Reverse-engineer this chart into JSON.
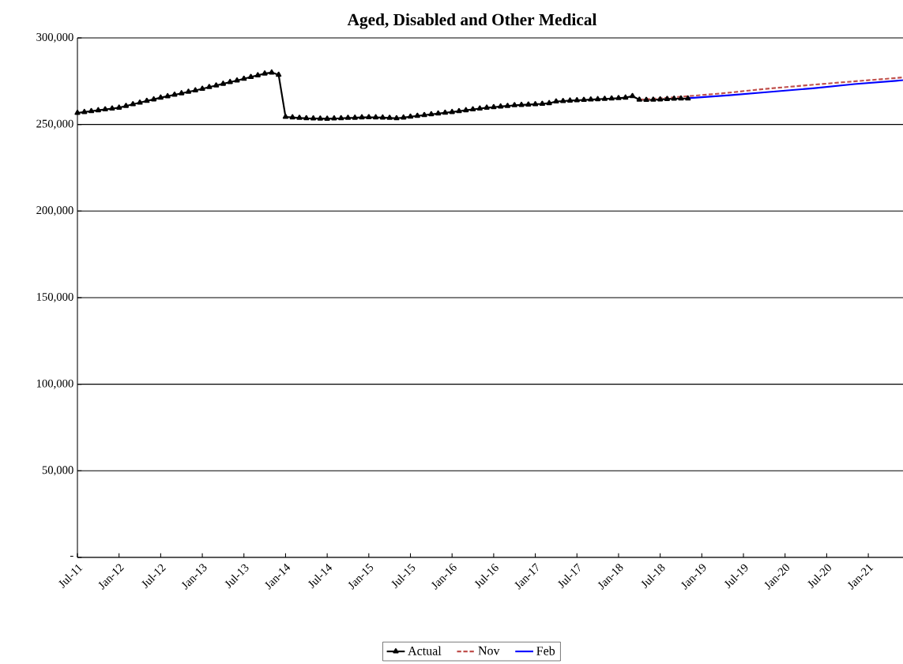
{
  "chart_data": {
    "type": "line",
    "title": "Aged, Disabled and Other Medical",
    "series": [
      {
        "name": "Actual",
        "color": "#000000",
        "marker": "triangle",
        "line_style": "solid",
        "x": [
          "2011-07",
          "2011-08",
          "2011-09",
          "2011-10",
          "2011-11",
          "2011-12",
          "2012-01",
          "2012-02",
          "2012-03",
          "2012-04",
          "2012-05",
          "2012-06",
          "2012-07",
          "2012-08",
          "2012-09",
          "2012-10",
          "2012-11",
          "2012-12",
          "2013-01",
          "2013-02",
          "2013-03",
          "2013-04",
          "2013-05",
          "2013-06",
          "2013-07",
          "2013-08",
          "2013-09",
          "2013-10",
          "2013-11",
          "2013-12",
          "2014-01",
          "2014-02",
          "2014-03",
          "2014-04",
          "2014-05",
          "2014-06",
          "2014-07",
          "2014-08",
          "2014-09",
          "2014-10",
          "2014-11",
          "2014-12",
          "2015-01",
          "2015-02",
          "2015-03",
          "2015-04",
          "2015-05",
          "2015-06",
          "2015-07",
          "2015-08",
          "2015-09",
          "2015-10",
          "2015-11",
          "2015-12",
          "2016-01",
          "2016-02",
          "2016-03",
          "2016-04",
          "2016-05",
          "2016-06",
          "2016-07",
          "2016-08",
          "2016-09",
          "2016-10",
          "2016-11",
          "2016-12",
          "2017-01",
          "2017-02",
          "2017-03",
          "2017-04",
          "2017-05",
          "2017-06",
          "2017-07",
          "2017-08",
          "2017-09",
          "2017-10",
          "2017-11",
          "2017-12",
          "2018-01",
          "2018-02",
          "2018-03",
          "2018-04",
          "2018-05",
          "2018-06",
          "2018-07",
          "2018-08",
          "2018-09",
          "2018-10",
          "2018-11"
        ],
        "values": [
          256700,
          257200,
          257700,
          258200,
          258700,
          259200,
          259700,
          260700,
          261700,
          262600,
          263600,
          264500,
          265500,
          266300,
          267200,
          268000,
          268900,
          269700,
          270600,
          271600,
          272500,
          273500,
          274500,
          275400,
          276400,
          277400,
          278400,
          279400,
          280000,
          278700,
          254400,
          254100,
          253800,
          253600,
          253500,
          253400,
          253300,
          253500,
          253600,
          253800,
          253900,
          254100,
          254200,
          254100,
          254000,
          253800,
          253600,
          254000,
          254500,
          255000,
          255400,
          255900,
          256300,
          256800,
          257200,
          257700,
          258200,
          258700,
          259200,
          259700,
          260000,
          260400,
          260700,
          261100,
          261300,
          261500,
          261700,
          261900,
          262300,
          263300,
          263500,
          263800,
          264000,
          264200,
          264400,
          264600,
          264800,
          265000,
          265200,
          265500,
          266400,
          264300,
          264200,
          264300,
          264500,
          264700,
          264900,
          265000,
          265000
        ]
      },
      {
        "name": "Nov",
        "color": "#c0504d",
        "marker": "none",
        "line_style": "dashed",
        "x": [
          "2018-04",
          "2018-10",
          "2019-04",
          "2019-10",
          "2020-04",
          "2020-10",
          "2021-04",
          "2021-06"
        ],
        "values": [
          264300,
          266000,
          268000,
          270500,
          272600,
          274600,
          276500,
          277200
        ]
      },
      {
        "name": "Feb",
        "color": "#0000ff",
        "marker": "none",
        "line_style": "solid",
        "x": [
          "2018-11",
          "2019-05",
          "2019-11",
          "2020-05",
          "2020-11",
          "2021-05",
          "2021-06"
        ],
        "values": [
          265200,
          266900,
          268900,
          270900,
          273300,
          275200,
          275600
        ]
      }
    ],
    "xlim": [
      "2011-07",
      "2021-06"
    ],
    "xticks": [
      {
        "value": "2011-07",
        "label": "Jul-11"
      },
      {
        "value": "2012-01",
        "label": "Jan-12"
      },
      {
        "value": "2012-07",
        "label": "Jul-12"
      },
      {
        "value": "2013-01",
        "label": "Jan-13"
      },
      {
        "value": "2013-07",
        "label": "Jul-13"
      },
      {
        "value": "2014-01",
        "label": "Jan-14"
      },
      {
        "value": "2014-07",
        "label": "Jul-14"
      },
      {
        "value": "2015-01",
        "label": "Jan-15"
      },
      {
        "value": "2015-07",
        "label": "Jul-15"
      },
      {
        "value": "2016-01",
        "label": "Jan-16"
      },
      {
        "value": "2016-07",
        "label": "Jul-16"
      },
      {
        "value": "2017-01",
        "label": "Jan-17"
      },
      {
        "value": "2017-07",
        "label": "Jul-17"
      },
      {
        "value": "2018-01",
        "label": "Jan-18"
      },
      {
        "value": "2018-07",
        "label": "Jul-18"
      },
      {
        "value": "2019-01",
        "label": "Jan-19"
      },
      {
        "value": "2019-07",
        "label": "Jul-19"
      },
      {
        "value": "2020-01",
        "label": "Jan-20"
      },
      {
        "value": "2020-07",
        "label": "Jul-20"
      },
      {
        "value": "2021-01",
        "label": "Jan-21"
      }
    ],
    "ylim": [
      0,
      300000
    ],
    "yticks": [
      {
        "value": 0,
        "label": "-"
      },
      {
        "value": 50000,
        "label": "50,000"
      },
      {
        "value": 100000,
        "label": "100,000"
      },
      {
        "value": 150000,
        "label": "150,000"
      },
      {
        "value": 200000,
        "label": "200,000"
      },
      {
        "value": 250000,
        "label": "250,000"
      },
      {
        "value": 300000,
        "label": "300,000"
      }
    ],
    "grid": "y",
    "legend": "bottom"
  }
}
